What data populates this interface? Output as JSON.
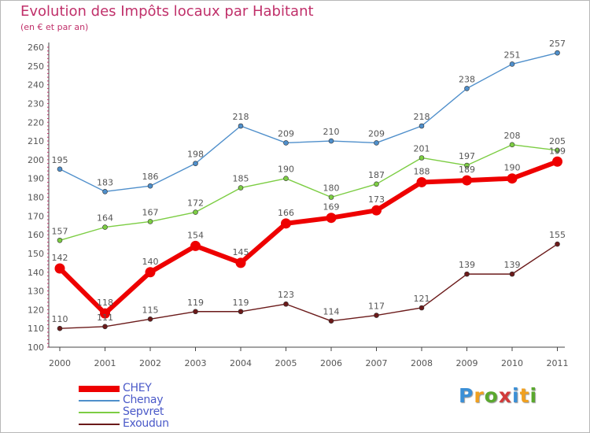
{
  "title": "Evolution des Impôts locaux par Habitant",
  "subtitle": "(en € et par an)",
  "chart_data": {
    "type": "line",
    "x": [
      "2000",
      "2001",
      "2002",
      "2003",
      "2004",
      "2005",
      "2006",
      "2007",
      "2008",
      "2009",
      "2010",
      "2011"
    ],
    "ylim": [
      100,
      260
    ],
    "yticks": [
      100,
      110,
      120,
      130,
      140,
      150,
      160,
      170,
      180,
      190,
      200,
      210,
      220,
      230,
      240,
      250,
      260
    ],
    "grid": false,
    "legend_position": "bottom-left",
    "series": [
      {
        "name": "CHEY",
        "color": "#ee0000",
        "values": [
          142,
          118,
          140,
          154,
          145,
          166,
          169,
          173,
          188,
          189,
          190,
          199
        ]
      },
      {
        "name": "Chenay",
        "color": "#4f8fcb",
        "values": [
          195,
          183,
          186,
          198,
          218,
          209,
          210,
          209,
          218,
          238,
          251,
          257
        ]
      },
      {
        "name": "Sepvret",
        "color": "#7ccd43",
        "values": [
          157,
          164,
          167,
          172,
          185,
          190,
          180,
          187,
          201,
          197,
          208,
          205
        ]
      },
      {
        "name": "Exoudun",
        "color": "#6b1a1a",
        "values": [
          110,
          111,
          115,
          119,
          119,
          123,
          114,
          117,
          121,
          139,
          139,
          155
        ]
      }
    ]
  },
  "logo": {
    "letters": [
      "P",
      "r",
      "o",
      "x",
      "i",
      "t",
      "i"
    ],
    "colors": [
      "#3b8fd6",
      "#f0a020",
      "#5aa82e",
      "#d23a3a",
      "#3b8fd6",
      "#f0a020",
      "#5aa82e"
    ]
  }
}
